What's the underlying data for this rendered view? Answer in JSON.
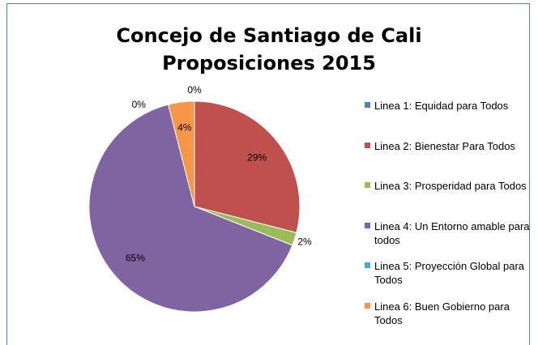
{
  "chart_data": {
    "type": "pie",
    "title": [
      "Concejo de Santiago de Cali",
      "Proposiciones 2015"
    ],
    "categories": [
      "Linea 1: Equidad para Todos",
      "Linea 2: Bienestar Para Todos",
      "Linea 3: Prosperidad para Todos",
      "Linea 4:  Un Entorno amable para todos",
      "Linea 5: Proyección Global para Todos",
      "Linea 6: Buen Gobierno para Todos"
    ],
    "values": [
      0,
      29,
      2,
      65,
      0,
      4
    ],
    "value_labels": [
      "0%",
      "29%",
      "2%",
      "65%",
      "0%",
      "4%"
    ],
    "colors": [
      "#4f81bd",
      "#c0504d",
      "#9bbb59",
      "#8064a2",
      "#4bacc6",
      "#f79646"
    ],
    "legend": "right"
  }
}
